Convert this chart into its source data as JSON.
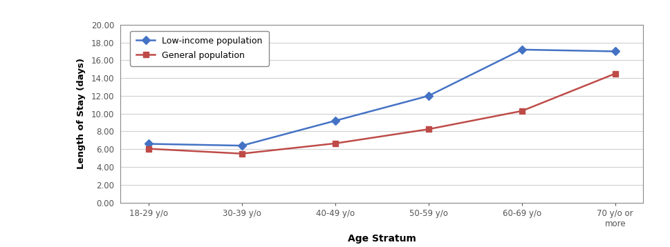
{
  "categories": [
    "18-29 y/o",
    "30-39 y/o",
    "40-49 y/o",
    "50-59 y/o",
    "60-69 y/o",
    "70 y/o or\nmore"
  ],
  "low_income": [
    6.6,
    6.4,
    9.2,
    12.0,
    17.2,
    17.0
  ],
  "general": [
    6.05,
    5.5,
    6.65,
    8.25,
    10.3,
    14.5
  ],
  "low_income_color": "#4472C4",
  "general_color": "#BE4B48",
  "low_income_label": "Low-income population",
  "general_label": "General population",
  "ylabel": "Length of Stay (days)",
  "xlabel": "Age Stratum",
  "ylim": [
    0.0,
    20.0
  ],
  "yticks": [
    0.0,
    2.0,
    4.0,
    6.0,
    8.0,
    10.0,
    12.0,
    14.0,
    16.0,
    18.0,
    20.0
  ],
  "grid_color": "#d0d0d0",
  "background_color": "#ffffff",
  "border_color": "#888888",
  "fig_width": 9.69,
  "fig_height": 3.58,
  "dpi": 100
}
